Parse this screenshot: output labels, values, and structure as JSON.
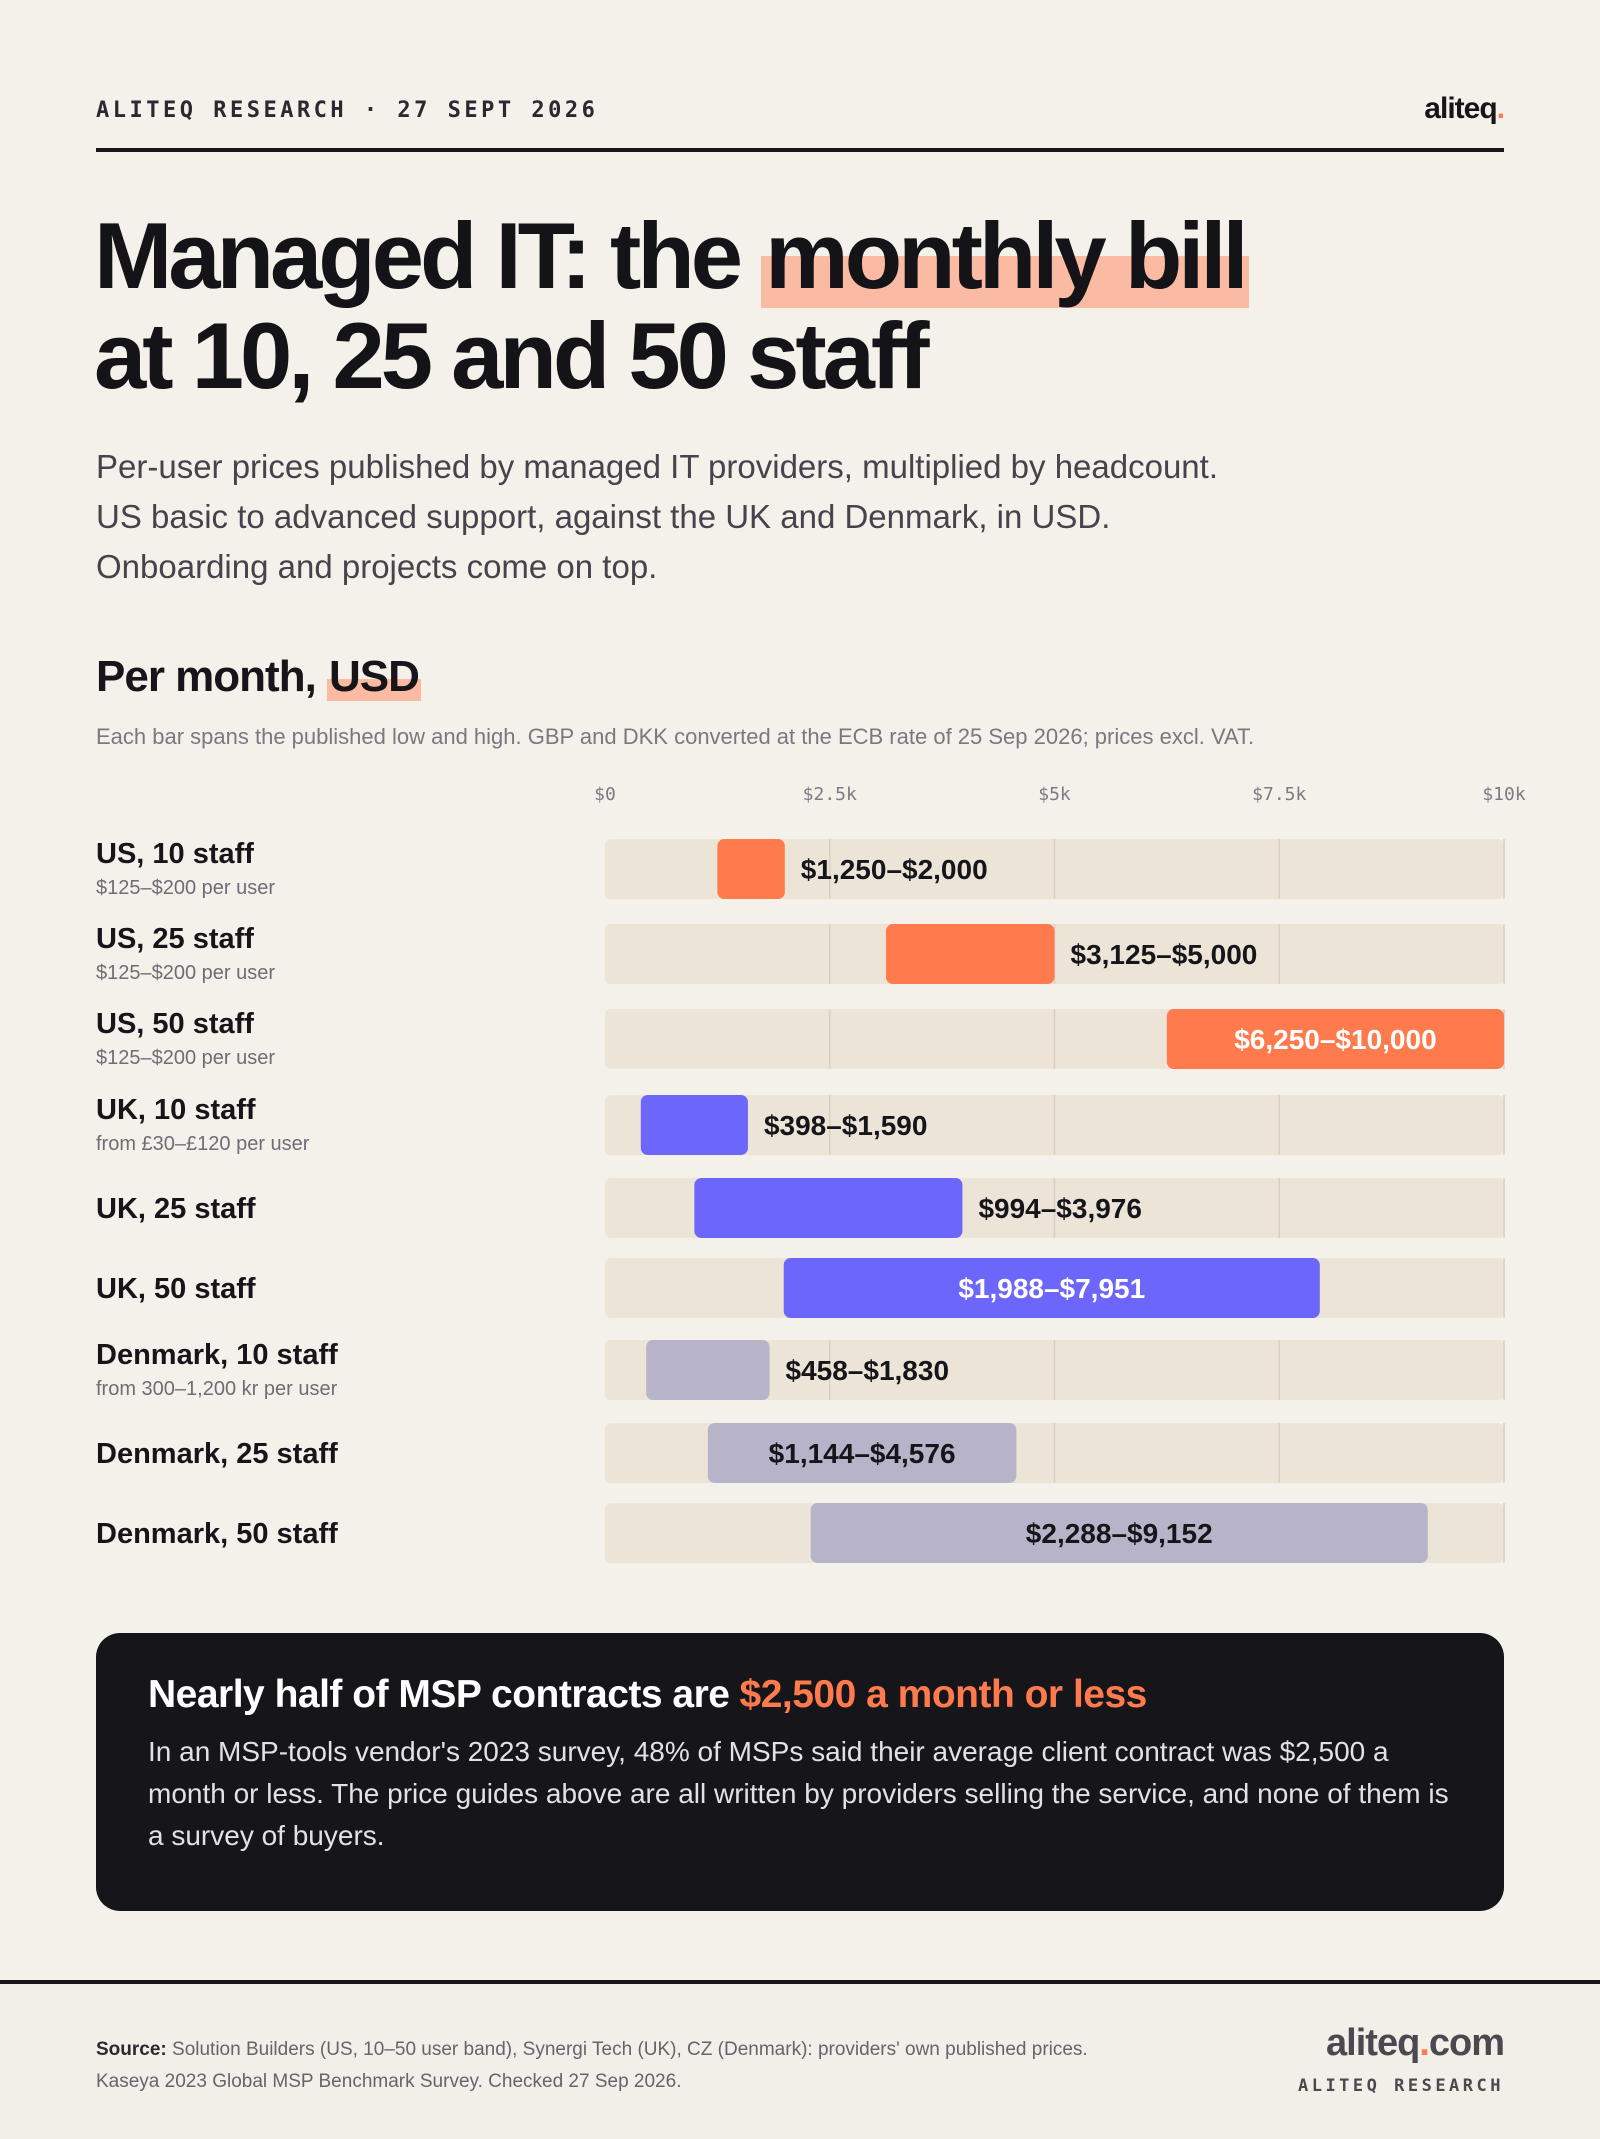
{
  "header": {
    "kicker": "ALITEQ RESEARCH · 27 SEPT 2026",
    "logo": "aliteq",
    "logo_dot": "."
  },
  "title": {
    "part1": "Managed IT: the ",
    "highlight": "monthly bill",
    "part2": "at 10, 25 and 50 staff"
  },
  "subtitle": {
    "line1": "Per-user prices published by managed IT providers, multiplied by headcount.",
    "line2": "US basic to advanced support, against the UK and Denmark, in USD.",
    "line3": "Onboarding and projects come on top."
  },
  "section": {
    "title_part1": "Per month, ",
    "title_highlight": "USD",
    "note": "Each bar spans the published low and high. GBP and DKK converted at the ECB rate of 25 Sep 2026; prices excl. VAT."
  },
  "colors": {
    "accent": "#ff7a4d",
    "us": "#ff7a4d",
    "uk": "#6c67fa",
    "denmark": "#b7b3c9",
    "track": "#ebe4d7",
    "dark": "#16151a"
  },
  "chart_data": {
    "type": "bar",
    "subtype": "floating-range",
    "xlim": [
      0,
      10000
    ],
    "ticks": [
      {
        "value": 0,
        "label": "$0"
      },
      {
        "value": 2500,
        "label": "$2.5k"
      },
      {
        "value": 5000,
        "label": "$5k"
      },
      {
        "value": 7500,
        "label": "$7.5k"
      },
      {
        "value": 10000,
        "label": "$10k"
      }
    ],
    "rows": [
      {
        "label": "US, 10 staff",
        "sub": "$125–$200 per user",
        "low": 1250,
        "high": 2000,
        "value_label": "$1,250–$2,000",
        "group": "us",
        "label_pos": "outside"
      },
      {
        "label": "US, 25 staff",
        "sub": "$125–$200 per user",
        "low": 3125,
        "high": 5000,
        "value_label": "$3,125–$5,000",
        "group": "us",
        "label_pos": "outside"
      },
      {
        "label": "US, 50 staff",
        "sub": "$125–$200 per user",
        "low": 6250,
        "high": 10000,
        "value_label": "$6,250–$10,000",
        "group": "us",
        "label_pos": "inside"
      },
      {
        "label": "UK, 10 staff",
        "sub": "from £30–£120 per user",
        "low": 398,
        "high": 1590,
        "value_label": "$398–$1,590",
        "group": "uk",
        "label_pos": "outside"
      },
      {
        "label": "UK, 25 staff",
        "sub": "",
        "low": 994,
        "high": 3976,
        "value_label": "$994–$3,976",
        "group": "uk",
        "label_pos": "outside"
      },
      {
        "label": "UK, 50 staff",
        "sub": "",
        "low": 1988,
        "high": 7951,
        "value_label": "$1,988–$7,951",
        "group": "uk",
        "label_pos": "inside"
      },
      {
        "label": "Denmark, 10 staff",
        "sub": "from 300–1,200 kr per user",
        "low": 458,
        "high": 1830,
        "value_label": "$458–$1,830",
        "group": "denmark",
        "label_pos": "outside"
      },
      {
        "label": "Denmark, 25 staff",
        "sub": "",
        "low": 1144,
        "high": 4576,
        "value_label": "$1,144–$4,576",
        "group": "denmark",
        "label_pos": "inside"
      },
      {
        "label": "Denmark, 50 staff",
        "sub": "",
        "low": 2288,
        "high": 9152,
        "value_label": "$2,288–$9,152",
        "group": "denmark",
        "label_pos": "inside"
      }
    ]
  },
  "callout": {
    "head": "Nearly half of MSP contracts are",
    "accent": "$2,500 a month or less",
    "body": "In an MSP-tools vendor's 2023 survey, 48% of MSPs said their average client contract was $2,500 a month or less. The price guides above are all written by providers selling the service, and none of them is a survey of buyers."
  },
  "footer": {
    "source_label": "Source:",
    "source_text": "Solution Builders (US, 10–50 user band), Synergi Tech (UK), CZ (Denmark): providers' own published prices. Kaseya 2023 Global MSP Benchmark Survey. Checked 27 Sep 2026.",
    "logo": "aliteq",
    "logo_dot": ".",
    "logo_tld": "com",
    "logo_sub": "ALITEQ RESEARCH"
  }
}
